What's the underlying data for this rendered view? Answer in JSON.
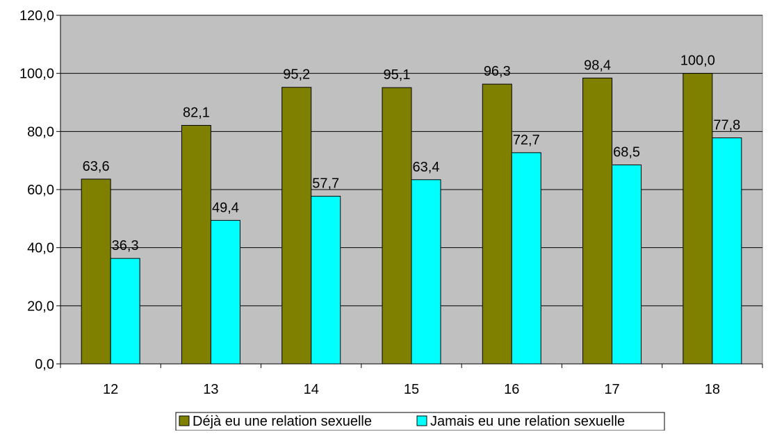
{
  "chart_data": {
    "type": "bar",
    "categories": [
      "12",
      "13",
      "14",
      "15",
      "16",
      "17",
      "18"
    ],
    "series": [
      {
        "name": "Déjà eu une relation sexuelle",
        "values": [
          63.6,
          82.1,
          95.2,
          95.1,
          96.3,
          98.4,
          100.0
        ],
        "labels": [
          "63,6",
          "82,1",
          "95,2",
          "95,1",
          "96,3",
          "98,4",
          "100,0"
        ],
        "color": "#808000"
      },
      {
        "name": "Jamais eu une relation sexuelle",
        "values": [
          36.3,
          49.4,
          57.7,
          63.4,
          72.7,
          68.5,
          77.8
        ],
        "labels": [
          "36,3",
          "49,4",
          "57,7",
          "63,4",
          "72,7",
          "68,5",
          "77,8"
        ],
        "color": "#00FFFF"
      }
    ],
    "ylim": [
      0,
      120
    ],
    "yticks": [
      0,
      20,
      40,
      60,
      80,
      100,
      120
    ],
    "ytick_labels": [
      "0,0",
      "20,0",
      "40,0",
      "60,0",
      "80,0",
      "100,0",
      "120,0"
    ],
    "grid": true,
    "legend_position": "bottom",
    "plot_background": "#C0C0C0"
  }
}
